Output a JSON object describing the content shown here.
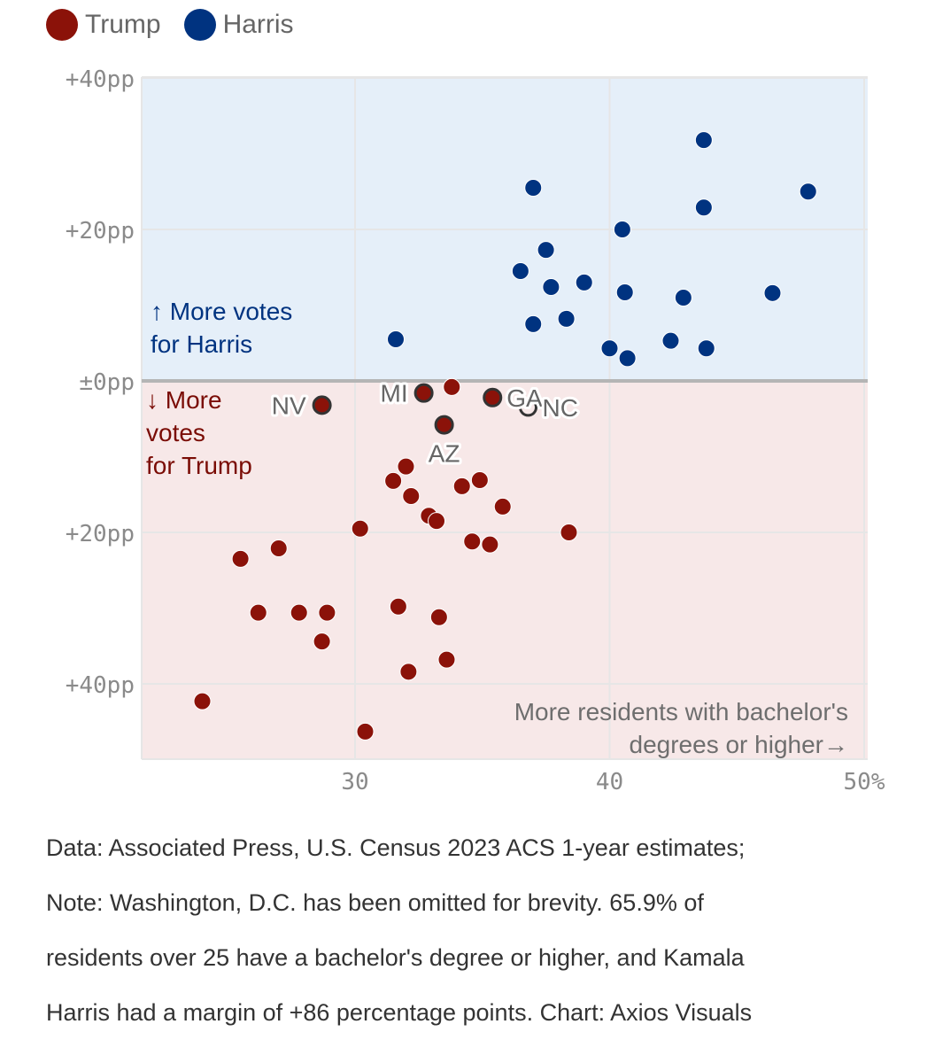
{
  "legend": [
    {
      "label": "Trump",
      "color": "#8b1209"
    },
    {
      "label": "Harris",
      "color": "#003380"
    }
  ],
  "chart_data": {
    "type": "scatter",
    "title": "",
    "xlabel": "More residents with bachelor's degrees or higher→",
    "ylabel": "",
    "xlim": [
      21.6,
      50
    ],
    "ylim": [
      -50,
      40
    ],
    "x_ticks": [
      {
        "value": 30,
        "label": "30"
      },
      {
        "value": 40,
        "label": "40"
      },
      {
        "value": 50,
        "label": "50%"
      }
    ],
    "y_ticks": [
      {
        "value": 40,
        "label": "+40pp"
      },
      {
        "value": 20,
        "label": "+20pp"
      },
      {
        "value": 0,
        "label": "±0pp"
      },
      {
        "value": -20,
        "label": "+20pp"
      },
      {
        "value": -40,
        "label": "+40pp"
      }
    ],
    "grid": true,
    "region_labels": {
      "harris": [
        "↑ More votes",
        "for Harris"
      ],
      "trump": [
        "↓ More",
        "votes",
        "for Trump"
      ]
    },
    "regions": {
      "harris_fill": "#e5eff9",
      "trump_fill": "#f7e8e8",
      "harris_text": "#003380",
      "trump_text": "#7a0c05"
    },
    "series": [
      {
        "name": "Harris",
        "color": "#003380",
        "points": [
          {
            "x": 43.7,
            "y": 31.8
          },
          {
            "x": 37.0,
            "y": 25.5
          },
          {
            "x": 47.8,
            "y": 25.0
          },
          {
            "x": 43.7,
            "y": 22.9
          },
          {
            "x": 40.5,
            "y": 20.0
          },
          {
            "x": 37.5,
            "y": 17.3
          },
          {
            "x": 36.5,
            "y": 14.5
          },
          {
            "x": 37.7,
            "y": 12.4
          },
          {
            "x": 39.0,
            "y": 13.0
          },
          {
            "x": 40.6,
            "y": 11.7
          },
          {
            "x": 42.9,
            "y": 11.0
          },
          {
            "x": 46.4,
            "y": 11.6
          },
          {
            "x": 38.3,
            "y": 8.2
          },
          {
            "x": 37.0,
            "y": 7.5
          },
          {
            "x": 31.6,
            "y": 5.5
          },
          {
            "x": 42.4,
            "y": 5.3
          },
          {
            "x": 40.0,
            "y": 4.3
          },
          {
            "x": 43.8,
            "y": 4.3
          },
          {
            "x": 40.7,
            "y": 3.0
          }
        ]
      },
      {
        "name": "Trump",
        "color": "#8b1209",
        "points": [
          {
            "x": 28.7,
            "y": -3.2,
            "label": "NV",
            "highlight": true,
            "label_pos": "left"
          },
          {
            "x": 32.7,
            "y": -1.6,
            "label": "MI",
            "highlight": true,
            "label_pos": "left"
          },
          {
            "x": 33.8,
            "y": -0.8
          },
          {
            "x": 35.4,
            "y": -2.2,
            "label": "GA",
            "highlight": true,
            "label_pos": "right"
          },
          {
            "x": 36.8,
            "y": -3.5,
            "label": "NC",
            "highlight": true,
            "label_pos": "right",
            "hollow": true
          },
          {
            "x": 33.5,
            "y": -5.8,
            "label": "AZ",
            "highlight": true,
            "label_pos": "below"
          },
          {
            "x": 32.0,
            "y": -11.3
          },
          {
            "x": 31.5,
            "y": -13.2
          },
          {
            "x": 32.2,
            "y": -15.2
          },
          {
            "x": 34.2,
            "y": -13.9
          },
          {
            "x": 34.9,
            "y": -13.1
          },
          {
            "x": 35.8,
            "y": -16.6
          },
          {
            "x": 32.9,
            "y": -17.8
          },
          {
            "x": 33.2,
            "y": -18.5
          },
          {
            "x": 30.2,
            "y": -19.5
          },
          {
            "x": 38.4,
            "y": -20.0
          },
          {
            "x": 34.6,
            "y": -21.2
          },
          {
            "x": 35.3,
            "y": -21.6
          },
          {
            "x": 25.5,
            "y": -23.5
          },
          {
            "x": 27.0,
            "y": -22.1
          },
          {
            "x": 26.2,
            "y": -30.6
          },
          {
            "x": 27.8,
            "y": -30.6
          },
          {
            "x": 28.9,
            "y": -30.6
          },
          {
            "x": 28.7,
            "y": -34.4
          },
          {
            "x": 31.7,
            "y": -29.8
          },
          {
            "x": 33.3,
            "y": -31.2
          },
          {
            "x": 32.1,
            "y": -38.4
          },
          {
            "x": 33.6,
            "y": -36.8
          },
          {
            "x": 24.0,
            "y": -42.3
          },
          {
            "x": 30.4,
            "y": -46.3
          }
        ]
      }
    ],
    "x_annotation": [
      "More residents with bachelor's",
      "degrees or higher→"
    ]
  },
  "footer": [
    "Data: Associated Press, U.S. Census 2023 ACS 1-year estimates;",
    "Note: Washington, D.C. has been omitted for brevity. 65.9% of",
    "residents over 25 have a bachelor's degree or higher, and Kamala",
    "Harris had a margin of +86 percentage points. Chart: Axios Visuals"
  ]
}
